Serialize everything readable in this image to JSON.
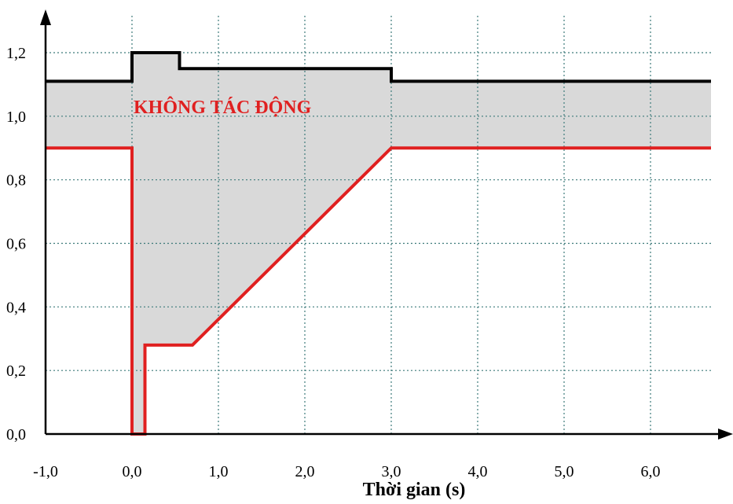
{
  "chart_data": {
    "type": "line",
    "title": "",
    "xlabel": "Thời gian (s)",
    "ylabel": "",
    "xlim": [
      -1.0,
      6.7
    ],
    "ylim": [
      0.0,
      1.2
    ],
    "grid": true,
    "x_ticks": [
      {
        "value": -1.0,
        "label": "-1,0"
      },
      {
        "value": 0.0,
        "label": "0,0"
      },
      {
        "value": 1.0,
        "label": "1,0"
      },
      {
        "value": 2.0,
        "label": "2,0"
      },
      {
        "value": 3.0,
        "label": "3,0"
      },
      {
        "value": 4.0,
        "label": "4,0"
      },
      {
        "value": 5.0,
        "label": "5,0"
      },
      {
        "value": 6.0,
        "label": "6,0"
      }
    ],
    "x_grid": [
      0.0,
      1.0,
      2.0,
      3.0,
      4.0,
      5.0,
      6.0
    ],
    "y_ticks": [
      {
        "value": 0.0,
        "label": "0,0"
      },
      {
        "value": 0.2,
        "label": "0,2"
      },
      {
        "value": 0.4,
        "label": "0,4"
      },
      {
        "value": 0.6,
        "label": "0,6"
      },
      {
        "value": 0.8,
        "label": "0,8"
      },
      {
        "value": 1.0,
        "label": "1,0"
      },
      {
        "value": 1.2,
        "label": "1,2"
      }
    ],
    "y_grid": [
      0.2,
      0.4,
      0.6,
      0.8,
      1.0,
      1.2
    ],
    "series": [
      {
        "color": "#000000",
        "points": [
          [
            -1.0,
            1.11
          ],
          [
            0.0,
            1.11
          ],
          [
            0.0,
            1.2
          ],
          [
            0.55,
            1.2
          ],
          [
            0.55,
            1.15
          ],
          [
            3.0,
            1.15
          ],
          [
            3.0,
            1.11
          ],
          [
            6.7,
            1.11
          ]
        ]
      },
      {
        "color": "#e02020",
        "points": [
          [
            -1.0,
            0.9
          ],
          [
            0.0,
            0.9
          ],
          [
            0.0,
            0.0
          ],
          [
            0.15,
            0.0
          ],
          [
            0.15,
            0.28
          ],
          [
            0.7,
            0.28
          ],
          [
            3.0,
            0.9
          ],
          [
            6.7,
            0.9
          ]
        ]
      }
    ],
    "region_fill": "#d9d9d9",
    "annotations": [
      {
        "text": "KHÔNG TÁC ĐỘNG",
        "x": 0.0,
        "y": 1.0,
        "color": "#e02020"
      }
    ]
  }
}
